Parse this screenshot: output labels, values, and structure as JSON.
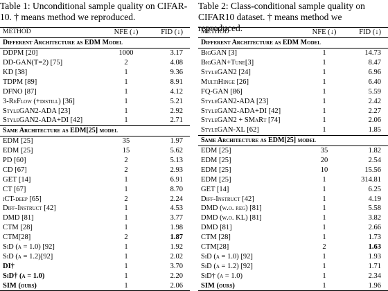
{
  "tables": [
    {
      "caption": "Table 1: Unconditional sample quality on CIFAR-10. † means method we reproduced.",
      "header": [
        "METHOD",
        "NFE (↓)",
        "FID (↓)"
      ],
      "sections": [
        {
          "title": "Different Architecture as EDM Model",
          "rows": [
            {
              "cells": [
                "DDPM [20]",
                "1000",
                "3.17"
              ]
            },
            {
              "cells": [
                "DD-GAN(T=2) [75]",
                "2",
                "4.08"
              ]
            },
            {
              "cells": [
                "KD [38]",
                "1",
                "9.36"
              ]
            },
            {
              "cells": [
                "TDPM [89]",
                "1",
                "8.91"
              ]
            },
            {
              "cells": [
                "DFNO [87]",
                "1",
                "4.12"
              ]
            },
            {
              "cells": [
                "3-ReFlow (+distill) [36]",
                "1",
                "5.21"
              ]
            },
            {
              "cells": [
                "StyleGAN2-ADA [23]",
                "1",
                "2.92"
              ]
            },
            {
              "cells": [
                "StyleGAN2-ADA+DI [42]",
                "1",
                "2.71"
              ]
            }
          ]
        },
        {
          "title": "Same Architecture as EDM[25] model",
          "rows": [
            {
              "cells": [
                "EDM [25]",
                "35",
                "1.97"
              ]
            },
            {
              "cells": [
                "EDM [25]",
                "15",
                "5.62"
              ]
            },
            {
              "cells": [
                "PD [60]",
                "2",
                "5.13"
              ]
            },
            {
              "cells": [
                "CD [67]",
                "2",
                "2.93"
              ]
            },
            {
              "cells": [
                "GET [14]",
                "1",
                "6.91"
              ]
            },
            {
              "cells": [
                "CT [67]",
                "1",
                "8.70"
              ]
            },
            {
              "cells": [
                "iCT-deep [65]",
                "2",
                "2.24"
              ]
            },
            {
              "cells": [
                "Diff-Instruct [42]",
                "1",
                "4.53"
              ]
            },
            {
              "cells": [
                "DMD [81]",
                "1",
                "3.77"
              ]
            },
            {
              "cells": [
                "CTM [28]",
                "1",
                "1.98"
              ]
            },
            {
              "cells": [
                "CTM[28]",
                "2",
                "1.87"
              ],
              "bold": [
                2
              ]
            },
            {
              "cells": [
                "SiD (α = 1.0) [92]",
                "1",
                "1.92"
              ]
            },
            {
              "cells": [
                "SiD (α = 1.2)[92]",
                "1",
                "2.02"
              ]
            },
            {
              "cells": [
                "DI†",
                "1",
                "3.70"
              ],
              "bold": [
                0
              ]
            },
            {
              "cells": [
                "SiD† (α = 1.0)",
                "1",
                "2.20"
              ],
              "bold": [
                0
              ]
            },
            {
              "cells": [
                "SIM (ours)",
                "1",
                "2.06"
              ],
              "bold": [
                0
              ]
            }
          ]
        }
      ]
    },
    {
      "caption": "Table 2: Class-conditional sample quality on CIFAR10 dataset. † means method we reproduced.",
      "header": [
        "METHOD",
        "NFE (↓)",
        "FID (↓)"
      ],
      "sections": [
        {
          "title": "Different Architecture as EDM Model",
          "rows": [
            {
              "cells": [
                "BigGAN [3]",
                "1",
                "14.73"
              ]
            },
            {
              "cells": [
                "BigGAN+Tune[3]",
                "1",
                "8.47"
              ]
            },
            {
              "cells": [
                "StyleGAN2 [24]",
                "1",
                "6.96"
              ]
            },
            {
              "cells": [
                "MultiHinge [26]",
                "1",
                "6.40"
              ]
            },
            {
              "cells": [
                "FQ-GAN [86]",
                "1",
                "5.59"
              ]
            },
            {
              "cells": [
                "StyleGAN2-ADA [23]",
                "1",
                "2.42"
              ]
            },
            {
              "cells": [
                "StyleGAN2-ADA+DI [42]",
                "1",
                "2.27"
              ]
            },
            {
              "cells": [
                "StyleGAN2 + SMaRt [74]",
                "1",
                "2.06"
              ]
            },
            {
              "cells": [
                "StyleGAN-XL [62]",
                "1",
                "1.85"
              ]
            }
          ]
        },
        {
          "title": "Same Architecture as EDM[25] model",
          "rows": [
            {
              "cells": [
                "EDM [25]",
                "35",
                "1.82"
              ]
            },
            {
              "cells": [
                "EDM [25]",
                "20",
                "2.54"
              ]
            },
            {
              "cells": [
                "EDM [25]",
                "10",
                "15.56"
              ]
            },
            {
              "cells": [
                "EDM [25]",
                "1",
                "314.81"
              ]
            },
            {
              "cells": [
                "GET [14]",
                "1",
                "6.25"
              ]
            },
            {
              "cells": [
                "Diff-Instruct [42]",
                "1",
                "4.19"
              ]
            },
            {
              "cells": [
                "DMD (w.o. reg) [81]",
                "1",
                "5.58"
              ]
            },
            {
              "cells": [
                "DMD (w.o. KL) [81]",
                "1",
                "3.82"
              ]
            },
            {
              "cells": [
                "DMD [81]",
                "1",
                "2.66"
              ]
            },
            {
              "cells": [
                "CTM [28]",
                "1",
                "1.73"
              ]
            },
            {
              "cells": [
                "CTM[28]",
                "2",
                "1.63"
              ],
              "bold": [
                2
              ]
            },
            {
              "cells": [
                "SiD (α = 1.0) [92]",
                "1",
                "1.93"
              ]
            },
            {
              "cells": [
                "SiD (α = 1.2) [92]",
                "1",
                "1.71"
              ]
            },
            {
              "cells": [
                "SiD† (α = 1.0)",
                "1",
                "2.34"
              ]
            },
            {
              "cells": [
                "SIM (ours)",
                "1",
                "1.96"
              ],
              "bold": [
                0
              ]
            }
          ]
        }
      ]
    }
  ]
}
